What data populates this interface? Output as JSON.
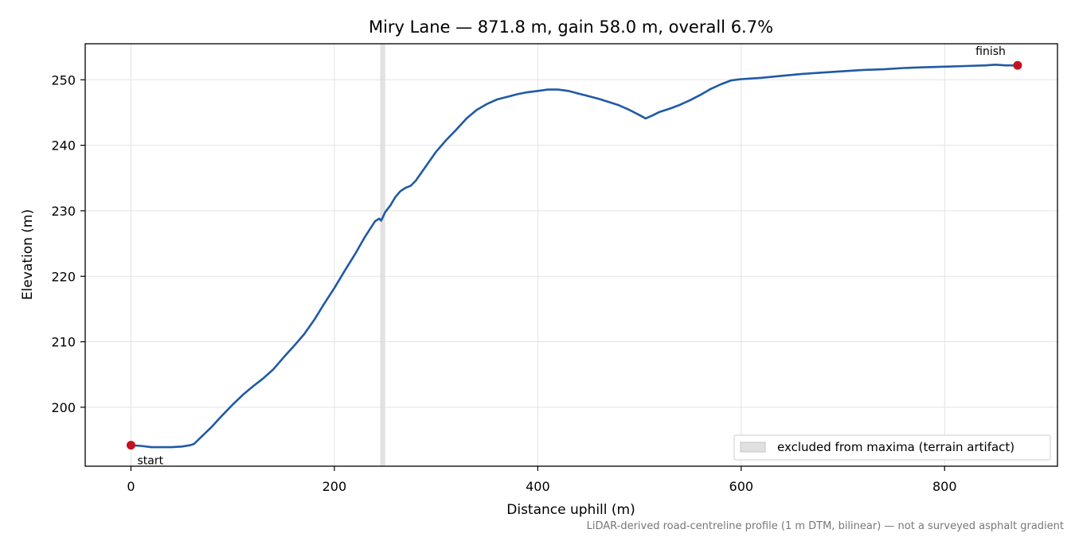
{
  "chart_data": {
    "type": "line",
    "title": "Miry Lane — 871.8 m, gain 58.0 m, overall 6.7%",
    "xlabel": "Distance uphill (m)",
    "ylabel": "Elevation (m)",
    "xlim": [
      -45,
      911
    ],
    "ylim": [
      191,
      255.5
    ],
    "xticks": [
      0,
      200,
      400,
      600,
      800
    ],
    "yticks": [
      200,
      210,
      220,
      230,
      240,
      250
    ],
    "grid": true,
    "series": [
      {
        "color": "#1f5aa6",
        "points": [
          [
            0,
            194.2
          ],
          [
            10,
            194.1
          ],
          [
            20,
            193.9
          ],
          [
            30,
            193.9
          ],
          [
            40,
            193.9
          ],
          [
            50,
            194.0
          ],
          [
            58,
            194.2
          ],
          [
            62,
            194.4
          ],
          [
            70,
            195.6
          ],
          [
            80,
            197.1
          ],
          [
            90,
            198.8
          ],
          [
            100,
            200.4
          ],
          [
            110,
            201.9
          ],
          [
            120,
            203.2
          ],
          [
            130,
            204.4
          ],
          [
            140,
            205.8
          ],
          [
            150,
            207.6
          ],
          [
            160,
            209.3
          ],
          [
            170,
            211.1
          ],
          [
            180,
            213.3
          ],
          [
            190,
            215.8
          ],
          [
            200,
            218.2
          ],
          [
            210,
            220.8
          ],
          [
            220,
            223.3
          ],
          [
            230,
            226.0
          ],
          [
            240,
            228.4
          ],
          [
            244,
            228.8
          ],
          [
            246,
            228.5
          ],
          [
            250,
            229.8
          ],
          [
            255,
            230.8
          ],
          [
            260,
            232.1
          ],
          [
            265,
            233.0
          ],
          [
            270,
            233.5
          ],
          [
            275,
            233.8
          ],
          [
            280,
            234.6
          ],
          [
            290,
            236.8
          ],
          [
            300,
            239.0
          ],
          [
            310,
            240.8
          ],
          [
            320,
            242.4
          ],
          [
            330,
            244.1
          ],
          [
            340,
            245.4
          ],
          [
            350,
            246.3
          ],
          [
            360,
            247.0
          ],
          [
            370,
            247.4
          ],
          [
            380,
            247.8
          ],
          [
            390,
            248.1
          ],
          [
            400,
            248.3
          ],
          [
            410,
            248.5
          ],
          [
            420,
            248.5
          ],
          [
            430,
            248.3
          ],
          [
            440,
            247.9
          ],
          [
            450,
            247.5
          ],
          [
            460,
            247.1
          ],
          [
            470,
            246.6
          ],
          [
            480,
            246.1
          ],
          [
            490,
            245.4
          ],
          [
            500,
            244.6
          ],
          [
            506,
            244.1
          ],
          [
            512,
            244.5
          ],
          [
            520,
            245.1
          ],
          [
            530,
            245.6
          ],
          [
            540,
            246.2
          ],
          [
            550,
            246.9
          ],
          [
            560,
            247.7
          ],
          [
            570,
            248.6
          ],
          [
            580,
            249.3
          ],
          [
            590,
            249.9
          ],
          [
            600,
            250.1
          ],
          [
            620,
            250.3
          ],
          [
            640,
            250.6
          ],
          [
            660,
            250.9
          ],
          [
            680,
            251.1
          ],
          [
            700,
            251.3
          ],
          [
            720,
            251.5
          ],
          [
            740,
            251.6
          ],
          [
            760,
            251.8
          ],
          [
            780,
            251.9
          ],
          [
            800,
            252.0
          ],
          [
            820,
            252.1
          ],
          [
            840,
            252.2
          ],
          [
            850,
            252.3
          ],
          [
            860,
            252.2
          ],
          [
            871.8,
            252.2
          ]
        ]
      }
    ],
    "markers": [
      {
        "x": 0,
        "y": 194.2,
        "label": "start",
        "color": "#c0141e"
      },
      {
        "x": 871.8,
        "y": 252.2,
        "label": "finish",
        "color": "#c0141e"
      }
    ],
    "excluded_band": {
      "x_start": 245,
      "x_end": 250
    },
    "legend": {
      "position": "bottom-right",
      "entries": [
        {
          "label": "excluded from maxima (terrain artifact)"
        }
      ]
    },
    "footnote": "LiDAR-derived road-centreline profile (1 m DTM, bilinear) — not a surveyed asphalt gradient"
  }
}
